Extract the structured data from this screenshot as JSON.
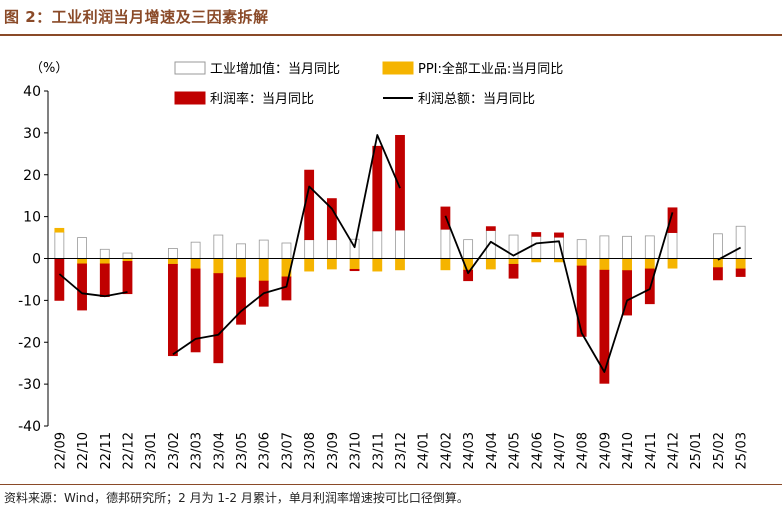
{
  "header": {
    "figure_title": "图 2：工业利润当月增速及三因素拆解"
  },
  "footer": {
    "source": "资料来源：Wind，德邦研究所；2 月为 1-2 月累计，单月利润率增速按可比口径倒算。"
  },
  "chart_data": {
    "type": "bar",
    "ylabel": "（%）",
    "ylim": [
      -40,
      40
    ],
    "yticks": [
      40,
      30,
      20,
      10,
      0,
      -10,
      -20,
      -30,
      -40
    ],
    "categories": [
      "22/09",
      "22/10",
      "22/11",
      "22/12",
      "23/01",
      "23/02",
      "23/03",
      "23/04",
      "23/05",
      "23/06",
      "23/07",
      "23/08",
      "23/09",
      "23/10",
      "23/11",
      "23/12",
      "24/01",
      "24/02",
      "24/03",
      "24/04",
      "24/05",
      "24/06",
      "24/07",
      "24/08",
      "24/09",
      "24/10",
      "24/11",
      "24/12",
      "25/01",
      "25/02",
      "25/03"
    ],
    "legend": [
      "工业增加值：当月同比",
      "PPI:全部工业品:当月同比",
      "利润率：当月同比",
      "利润总额：当月同比"
    ],
    "colors": {
      "value_added": "#ffffff",
      "value_added_stroke": "#999999",
      "ppi": "#f5b400",
      "margin": "#c00000",
      "profit": "#000000"
    },
    "series": [
      {
        "name": "工业增加值：当月同比",
        "values": [
          6.3,
          5.0,
          2.2,
          1.3,
          null,
          2.4,
          3.9,
          5.6,
          3.5,
          4.4,
          3.7,
          4.5,
          4.5,
          4.6,
          6.6,
          6.8,
          null,
          7.0,
          4.5,
          6.7,
          5.6,
          5.3,
          5.1,
          4.5,
          5.4,
          5.3,
          5.4,
          6.2,
          null,
          5.9,
          7.7
        ]
      },
      {
        "name": "PPI:全部工业品:当月同比",
        "values": [
          0.9,
          -1.3,
          -1.3,
          -0.7,
          null,
          -1.4,
          -2.5,
          -3.6,
          -4.6,
          -5.4,
          -4.4,
          -3.0,
          -2.5,
          -2.6,
          -3.0,
          -2.7,
          null,
          -2.7,
          -2.8,
          -2.5,
          -1.4,
          -0.8,
          -0.8,
          -1.8,
          -2.8,
          -2.9,
          -2.5,
          -2.3,
          null,
          -2.2,
          -2.5
        ]
      },
      {
        "name": "利润率：当月同比",
        "values": [
          -10.0,
          -11.0,
          -7.8,
          -7.7,
          null,
          -21.8,
          -19.8,
          -21.3,
          -11.1,
          -6.0,
          -5.5,
          16.6,
          9.8,
          -0.3,
          20.2,
          22.6,
          null,
          5.3,
          -2.5,
          0.9,
          -3.3,
          0.9,
          1.0,
          -16.8,
          -27.0,
          -10.6,
          -8.3,
          5.9,
          null,
          -2.9,
          -1.8
        ]
      },
      {
        "name": "利润总额：当月同比",
        "values": [
          -3.7,
          -8.3,
          -9.0,
          -8.0,
          null,
          -22.9,
          -19.2,
          -18.2,
          -12.6,
          -8.3,
          -6.7,
          17.2,
          11.9,
          2.7,
          29.5,
          16.8,
          null,
          10.2,
          -3.5,
          4.0,
          0.7,
          3.6,
          4.1,
          -17.8,
          -27.1,
          -10.0,
          -7.3,
          11.0,
          null,
          -0.3,
          2.6
        ]
      }
    ]
  }
}
